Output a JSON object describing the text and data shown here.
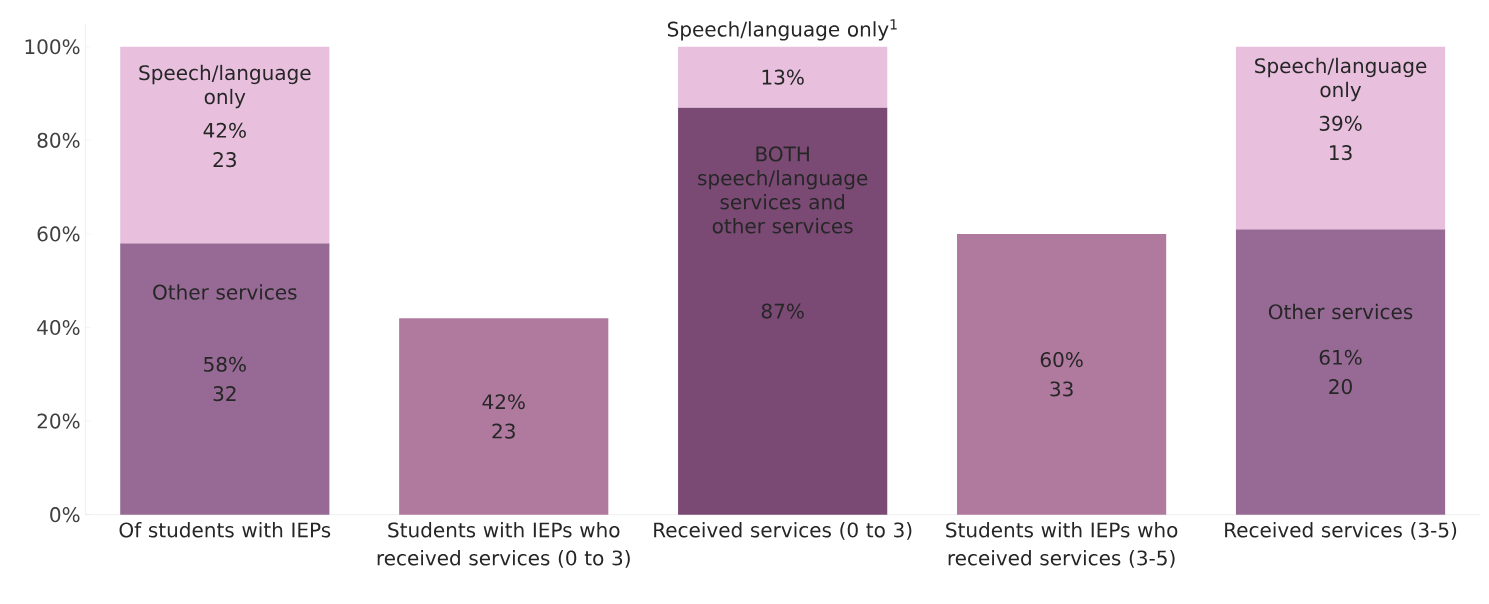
{
  "chart_data": {
    "type": "bar",
    "stacked": true,
    "categories": [
      "Of students with IEPs",
      "Students with IEPs who received services (0 to 3)",
      "Received services (0 to 3)",
      "Students with IEPs who received services (3-5)",
      "Received services (3-5)"
    ],
    "series": [
      {
        "colors": [
          "#966a94",
          "#b07a9f",
          "#7a4a75",
          "#b07a9f",
          "#966a94"
        ],
        "values": [
          58,
          42,
          87,
          60,
          61
        ],
        "value_labels": [
          "58% 32",
          "42% 23",
          "87%",
          "60% 33",
          "61% 20"
        ]
      },
      {
        "color": "#e8c0de",
        "values": [
          42,
          null,
          13,
          null,
          39
        ],
        "value_labels": [
          "42% 23",
          null,
          "13%",
          null,
          "39% 13"
        ]
      }
    ],
    "ylim": [
      0,
      105
    ],
    "yticks": [
      {
        "value": 0,
        "label": "0%"
      },
      {
        "value": 20,
        "label": "20%"
      },
      {
        "value": 40,
        "label": "40%"
      },
      {
        "value": 60,
        "label": "60%"
      },
      {
        "value": 80,
        "label": "80%"
      },
      {
        "value": 100,
        "label": "100%"
      }
    ],
    "annotations": [
      "Speech/language only",
      "Other services",
      "Speech/language only$^{1}$",
      "BOTH speech/language services and other services",
      "Speech/language only",
      "Other services"
    ]
  }
}
